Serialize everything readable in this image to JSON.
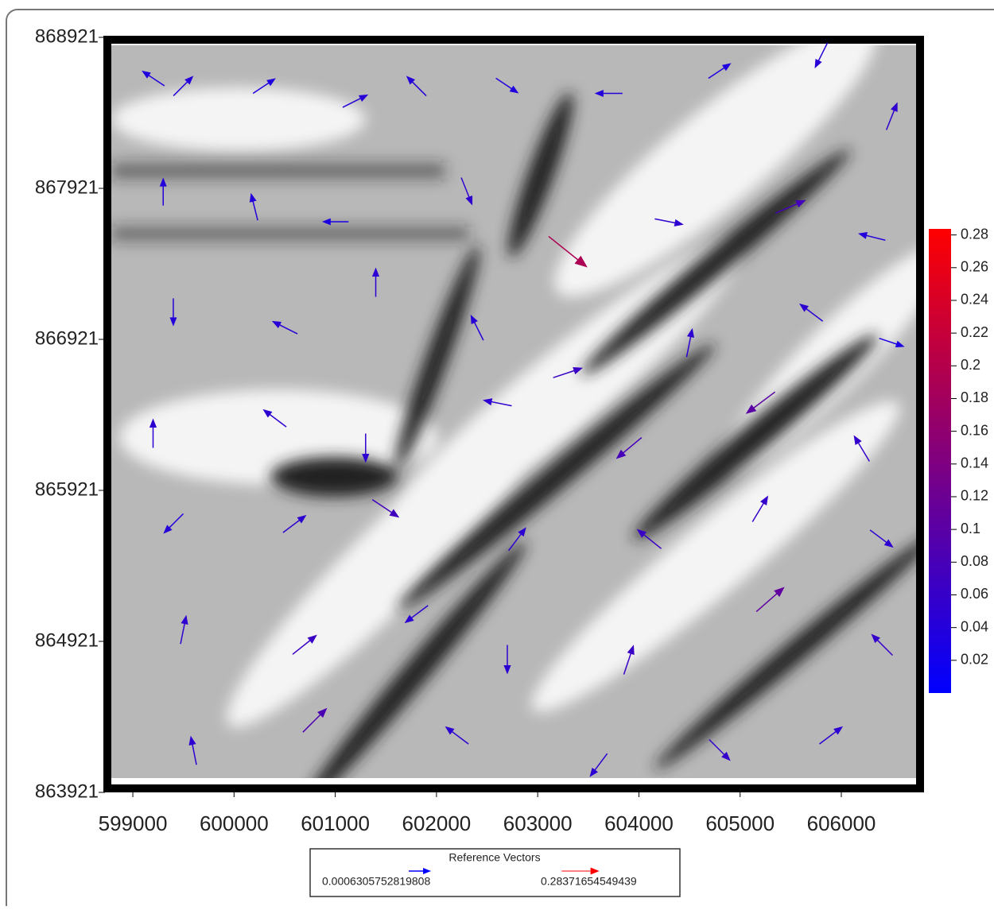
{
  "chart_data": {
    "type": "vector",
    "xlim": [
      598709,
      606817
    ],
    "ylim": [
      863921,
      868921
    ],
    "xticks": [
      599000,
      600000,
      601000,
      602000,
      603000,
      604000,
      605000,
      606000
    ],
    "yticks": [
      863921,
      864921,
      865921,
      866921,
      867921,
      868921
    ],
    "colorbar": {
      "lim": [
        0,
        0.2837
      ],
      "ticks": [
        0.02,
        0.04,
        0.06,
        0.08,
        0.1,
        0.12,
        0.14,
        0.16,
        0.18,
        0.2,
        0.22,
        0.24,
        0.26,
        0.28
      ],
      "colormap": [
        "#0000ff",
        "#ff0000"
      ]
    },
    "legend": {
      "title": "Reference Vectors",
      "min": 0.0006305752819808,
      "max": 0.28371654549439
    },
    "vectors": {
      "x": [
        599200,
        599500,
        600300,
        601200,
        601800,
        602700,
        603700,
        604800,
        605800,
        606500,
        599300,
        600200,
        601000,
        602300,
        603300,
        604300,
        605500,
        606300,
        599400,
        600500,
        601400,
        602400,
        603300,
        604500,
        605700,
        606500,
        599200,
        600400,
        601300,
        602600,
        603900,
        605200,
        606200,
        599400,
        600600,
        601500,
        602800,
        604100,
        605200,
        606400,
        599500,
        600700,
        601800,
        602700,
        603900,
        605300,
        606400,
        599600,
        600800,
        602200,
        603600,
        604800,
        605900
      ],
      "y": [
        868650,
        868600,
        868600,
        868500,
        868600,
        868600,
        868550,
        868700,
        868800,
        868400,
        867900,
        867800,
        867700,
        867900,
        867500,
        867700,
        867800,
        867600,
        867100,
        867000,
        867300,
        867000,
        866700,
        866900,
        867100,
        866900,
        866300,
        866400,
        866200,
        866500,
        866200,
        866500,
        866200,
        865700,
        865700,
        865800,
        865600,
        865600,
        865800,
        865600,
        865000,
        864900,
        865100,
        864800,
        864800,
        865200,
        864900,
        864200,
        864400,
        864300,
        864100,
        864200,
        864300
      ],
      "u": [
        -0.03,
        0.03,
        0.03,
        0.04,
        -0.03,
        0.03,
        -0.04,
        0.03,
        -0.02,
        0.02,
        0.0,
        -0.01,
        -0.03,
        0.02,
        0.15,
        0.05,
        0.07,
        -0.04,
        0.0,
        -0.04,
        0.0,
        -0.02,
        0.06,
        0.01,
        -0.04,
        0.03,
        0.0,
        -0.04,
        0.0,
        -0.05,
        -0.06,
        -0.08,
        -0.03,
        -0.03,
        0.04,
        0.06,
        0.03,
        -0.05,
        0.03,
        0.04,
        0.01,
        0.05,
        -0.04,
        0.0,
        0.02,
        0.08,
        -0.04,
        -0.01,
        0.06,
        -0.04,
        -0.03,
        0.04,
        0.04
      ],
      "v": [
        0.02,
        0.03,
        0.02,
        0.02,
        0.03,
        -0.02,
        0.0,
        0.02,
        -0.04,
        0.05,
        0.04,
        0.04,
        0.0,
        -0.05,
        -0.12,
        -0.01,
        0.03,
        0.01,
        -0.04,
        0.02,
        0.05,
        0.04,
        0.02,
        0.05,
        0.03,
        -0.01,
        0.05,
        0.03,
        -0.05,
        0.01,
        -0.05,
        -0.06,
        0.05,
        -0.03,
        0.03,
        -0.04,
        0.04,
        0.04,
        0.05,
        -0.03,
        0.05,
        0.04,
        -0.03,
        -0.05,
        0.06,
        0.07,
        0.04,
        0.05,
        0.06,
        0.03,
        -0.04,
        -0.04,
        0.03
      ]
    }
  }
}
